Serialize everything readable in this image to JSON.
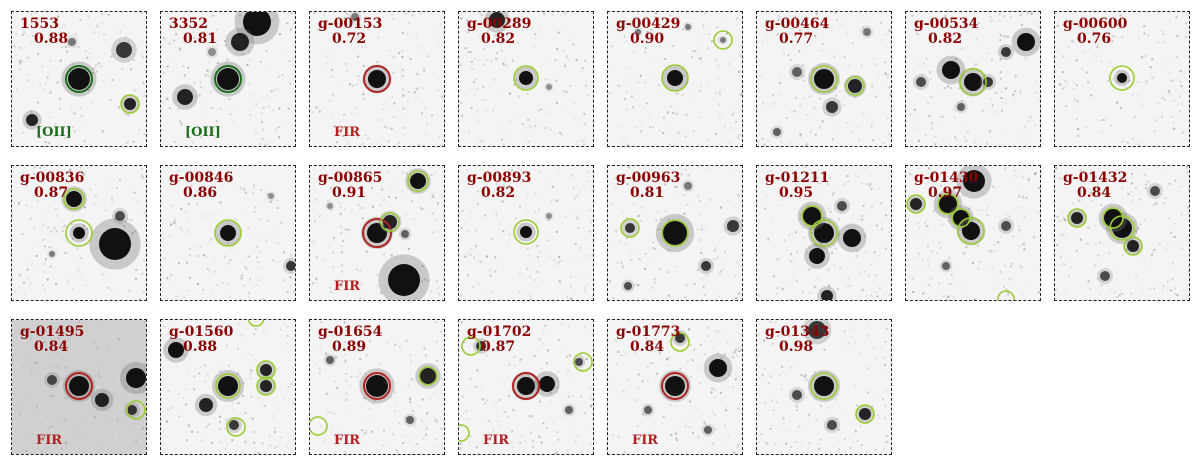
{
  "colors": {
    "label": "#8b0000",
    "oii_circle": "#1a6b1a",
    "fir_circle": "#b22222",
    "neighbor_circle": "#9acd32"
  },
  "tiles": [
    {
      "id": "1553",
      "z": "0.88",
      "tag": "[OII]",
      "tag_type": "oii"
    },
    {
      "id": "3352",
      "z": "0.81",
      "tag": "[OII]",
      "tag_type": "oii"
    },
    {
      "id": "g-00153",
      "z": "0.72",
      "tag": "FIR",
      "tag_type": "fir"
    },
    {
      "id": "g-00289",
      "z": "0.82",
      "tag": "",
      "tag_type": "none"
    },
    {
      "id": "g-00429",
      "z": "0.90",
      "tag": "",
      "tag_type": "none"
    },
    {
      "id": "g-00464",
      "z": "0.77",
      "tag": "",
      "tag_type": "none"
    },
    {
      "id": "g-00534",
      "z": "0.82",
      "tag": "",
      "tag_type": "none"
    },
    {
      "id": "g-00600",
      "z": "0.76",
      "tag": "",
      "tag_type": "none"
    },
    {
      "id": "g-00836",
      "z": "0.87",
      "tag": "",
      "tag_type": "none"
    },
    {
      "id": "g-00846",
      "z": "0.86",
      "tag": "",
      "tag_type": "none"
    },
    {
      "id": "g-00865",
      "z": "0.91",
      "tag": "FIR",
      "tag_type": "fir"
    },
    {
      "id": "g-00893",
      "z": "0.82",
      "tag": "",
      "tag_type": "none"
    },
    {
      "id": "g-00963",
      "z": "0.81",
      "tag": "",
      "tag_type": "none"
    },
    {
      "id": "g-01211",
      "z": "0.95",
      "tag": "",
      "tag_type": "none"
    },
    {
      "id": "g-01430",
      "z": "0.97",
      "tag": "",
      "tag_type": "none"
    },
    {
      "id": "g-01432",
      "z": "0.84",
      "tag": "",
      "tag_type": "none"
    },
    {
      "id": "g-01495",
      "z": "0.84",
      "tag": "FIR",
      "tag_type": "fir"
    },
    {
      "id": "g-01560",
      "z": "0.88",
      "tag": "",
      "tag_type": "none"
    },
    {
      "id": "g-01654",
      "z": "0.89",
      "tag": "FIR",
      "tag_type": "fir"
    },
    {
      "id": "g-01702",
      "z": "0.87",
      "tag": "FIR",
      "tag_type": "fir"
    },
    {
      "id": "g-01773",
      "z": "0.84",
      "tag": "FIR",
      "tag_type": "fir"
    },
    {
      "id": "g-01343",
      "z": "0.98",
      "tag": "",
      "tag_type": "none"
    }
  ]
}
